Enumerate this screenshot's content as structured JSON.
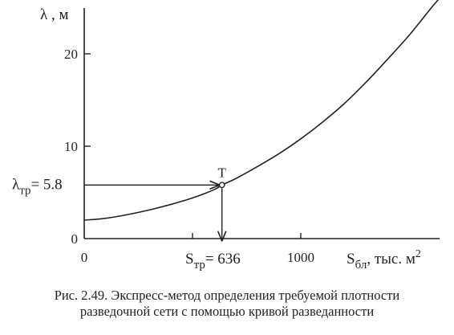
{
  "chart_data": {
    "type": "line",
    "title": "",
    "xlabel": {
      "main": "S",
      "sub": "бл",
      "rest": ", тыс. м",
      "sup": "2"
    },
    "ylabel": {
      "main": "λ",
      "rest": " , м"
    },
    "x_ticks": [
      0,
      1000
    ],
    "y_ticks": [
      0,
      10,
      20
    ],
    "xlim": [
      0,
      2000
    ],
    "ylim": [
      0,
      25.6
    ],
    "grid": false,
    "series": [
      {
        "x": [
          0,
          100,
          200,
          300,
          400,
          500,
          600,
          636,
          700,
          800,
          900,
          1000,
          1100,
          1200,
          1300,
          1400,
          1500,
          1600,
          1640
        ],
        "y": [
          2.0,
          2.2,
          2.6,
          3.1,
          3.7,
          4.4,
          5.3,
          5.8,
          6.5,
          7.8,
          9.2,
          10.8,
          12.6,
          14.6,
          16.9,
          19.4,
          22.0,
          24.9,
          26.0
        ]
      }
    ],
    "annotations": {
      "point_label": "T",
      "point": {
        "x": 636,
        "y": 5.8
      },
      "lambda_label": {
        "main": "λ",
        "sub": "тр",
        "value": "= 5.8"
      },
      "s_label": {
        "main": "S",
        "sub": "тр",
        "value": "= 636"
      }
    }
  },
  "caption": {
    "line1": "Рис. 2.49. Экспресс-метод определения требуемой плотности",
    "line2": "разведочной сети с помощью кривой разведанности"
  }
}
